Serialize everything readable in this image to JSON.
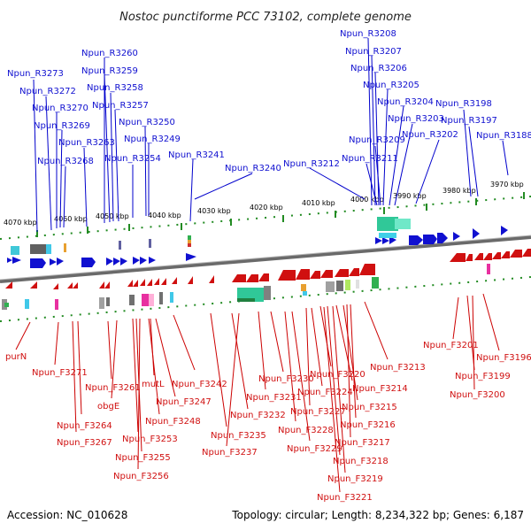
{
  "title": "Nostoc punctiforme PCC 73102, complete genome",
  "footer": {
    "accession": "Accession: NC_010628",
    "summary": "Topology: circular; Length: 8,234,322 bp; Genes: 6,187"
  },
  "colors": {
    "reverse_strand": "#1010d0",
    "forward_strand": "#d01010",
    "backbone": "#808080",
    "tick": "#228b22"
  },
  "ticks": [
    {
      "label": "4070 kbp"
    },
    {
      "label": "4060 kbp"
    },
    {
      "label": "4050 kbp"
    },
    {
      "label": "4040 kbp"
    },
    {
      "label": "4030 kbp"
    },
    {
      "label": "4020 kbp"
    },
    {
      "label": "4010 kbp"
    },
    {
      "label": "4000 kbp"
    },
    {
      "label": "3990 kbp"
    },
    {
      "label": "3980 kbp"
    },
    {
      "label": "3970 kbp"
    }
  ],
  "top_labels": [
    {
      "text": "Npun_R3273"
    },
    {
      "text": "Npun_R3272"
    },
    {
      "text": "Npun_R3270"
    },
    {
      "text": "Npun_R3269"
    },
    {
      "text": "Npun_R3268"
    },
    {
      "text": "Npun_R3263"
    },
    {
      "text": "Npun_R3260"
    },
    {
      "text": "Npun_R3259"
    },
    {
      "text": "Npun_R3258"
    },
    {
      "text": "Npun_R3257"
    },
    {
      "text": "Npun_R3254"
    },
    {
      "text": "Npun_R3250"
    },
    {
      "text": "Npun_R3249"
    },
    {
      "text": "Npun_R3241"
    },
    {
      "text": "Npun_R3240"
    },
    {
      "text": "Npun_R3212"
    },
    {
      "text": "Npun_R3208"
    },
    {
      "text": "Npun_R3207"
    },
    {
      "text": "Npun_R3206"
    },
    {
      "text": "Npun_R3205"
    },
    {
      "text": "Npun_R3204"
    },
    {
      "text": "Npun_R3203"
    },
    {
      "text": "Npun_R3209"
    },
    {
      "text": "Npun_R3211"
    },
    {
      "text": "Npun_R3202"
    },
    {
      "text": "Npun_R3198"
    },
    {
      "text": "Npun_R3197"
    },
    {
      "text": "Npun_R3188"
    }
  ],
  "bottom_labels": [
    {
      "text": "purN"
    },
    {
      "text": "Npun_F3271"
    },
    {
      "text": "Npun_F3264"
    },
    {
      "text": "Npun_F3267"
    },
    {
      "text": "Npun_F3261"
    },
    {
      "text": "obgE"
    },
    {
      "text": "mutL"
    },
    {
      "text": "Npun_F3242"
    },
    {
      "text": "Npun_F3247"
    },
    {
      "text": "Npun_F3248"
    },
    {
      "text": "Npun_F3253"
    },
    {
      "text": "Npun_F3255"
    },
    {
      "text": "Npun_F3256"
    },
    {
      "text": "Npun_F3235"
    },
    {
      "text": "Npun_F3237"
    },
    {
      "text": "Npun_F3232"
    },
    {
      "text": "Npun_F3231"
    },
    {
      "text": "Npun_F3230"
    },
    {
      "text": "Npun_F3228"
    },
    {
      "text": "Npun_F3229"
    },
    {
      "text": "Npun_F3227"
    },
    {
      "text": "Npun_F3224"
    },
    {
      "text": "Npun_F3220"
    },
    {
      "text": "Npun_F3214"
    },
    {
      "text": "Npun_F3215"
    },
    {
      "text": "Npun_F3216"
    },
    {
      "text": "Npun_F3217"
    },
    {
      "text": "Npun_F3218"
    },
    {
      "text": "Npun_F3219"
    },
    {
      "text": "Npun_F3221"
    },
    {
      "text": "Npun_F3213"
    },
    {
      "text": "Npun_F3201"
    },
    {
      "text": "Npun_F3199"
    },
    {
      "text": "Npun_F3200"
    },
    {
      "text": "Npun_F3196"
    }
  ]
}
